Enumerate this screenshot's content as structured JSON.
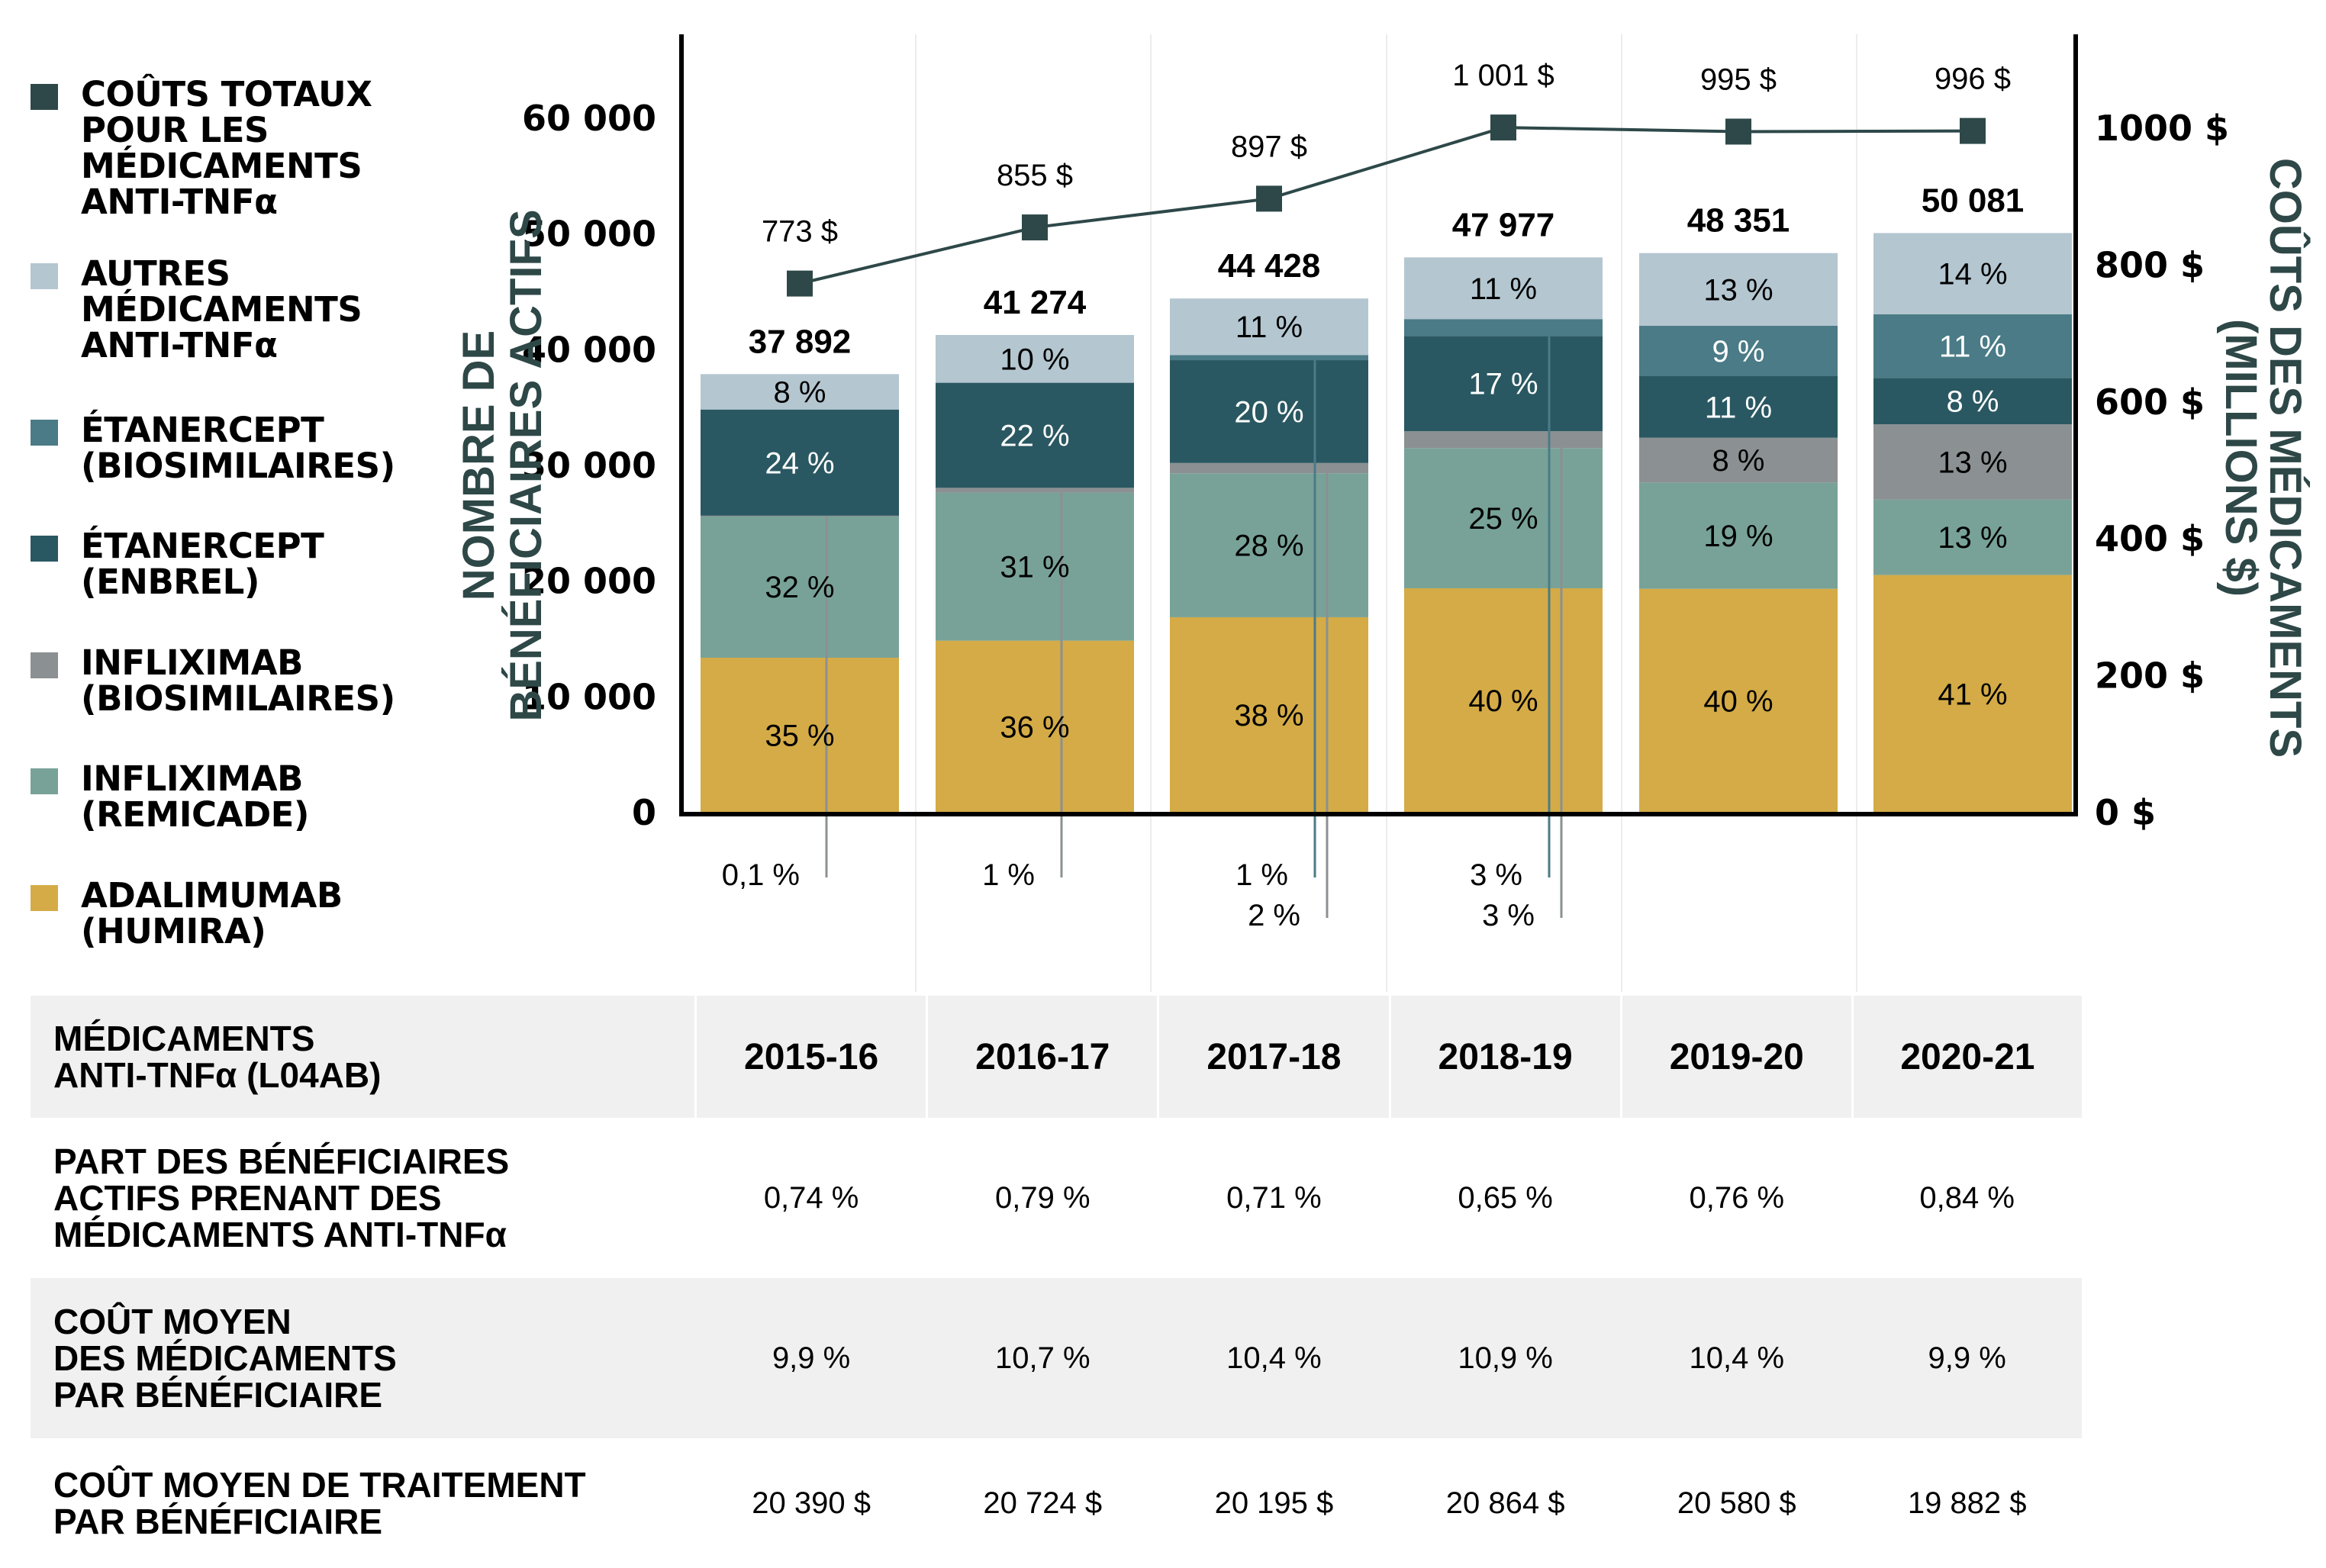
{
  "legend": [
    {
      "label": "COÛTS TOTAUX\nPOUR LES\nMÉDICAMENTS\nANTI-TNFα",
      "color": "#2e4849"
    },
    {
      "label": "AUTRES\nMÉDICAMENTS\nANTI-TNFα",
      "color": "#b4c6d0"
    },
    {
      "label": "ÉTANERCEPT\n(BIOSIMILAIRES)",
      "color": "#4a7b86"
    },
    {
      "label": "ÉTANERCEPT\n(ENBREL)",
      "color": "#2a5862"
    },
    {
      "label": "INFLIXIMAB\n(BIOSIMILAIRES)",
      "color": "#8b9092"
    },
    {
      "label": "INFLIXIMAB\n(REMICADE)",
      "color": "#78a298"
    },
    {
      "label": "ADALIMUMAB\n(HUMIRA)",
      "color": "#d4ab46"
    }
  ],
  "chart_data": {
    "type": "bar",
    "subtype": "stacked-bar-with-line",
    "categories": [
      "2015-16",
      "2016-17",
      "2017-18",
      "2018-19",
      "2019-20",
      "2020-21"
    ],
    "left_axis": {
      "label": "NOMBRE DE BÉNÉFICIAIRES ACTIFS",
      "ylim": [
        0,
        60000
      ],
      "ticks": [
        0,
        10000,
        20000,
        30000,
        40000,
        50000,
        60000
      ],
      "tick_labels": [
        "0",
        "10 000",
        "20 000",
        "30 000",
        "40 000",
        "50 000",
        "60 000"
      ]
    },
    "right_axis": {
      "label": "COÛTS DES MÉDICAMENTS (MILLIONS $)",
      "ylim": [
        0,
        1000
      ],
      "ticks": [
        0,
        200,
        400,
        600,
        800,
        1000
      ],
      "tick_labels": [
        "0 $",
        "200 $",
        "400 $",
        "600 $",
        "800 $",
        "1000 $"
      ]
    },
    "totals": [
      37892,
      41274,
      44428,
      47977,
      48351,
      50081
    ],
    "total_labels": [
      "37 892",
      "41 274",
      "44 428",
      "47 977",
      "48 351",
      "50 081"
    ],
    "series": [
      {
        "name": "ADALIMUMAB (HUMIRA)",
        "color": "#d4ab46",
        "values": [
          35,
          36,
          38,
          40,
          40,
          41
        ],
        "labels": [
          "35 %",
          "36 %",
          "38 %",
          "40 %",
          "40 %",
          "41 %"
        ],
        "label_color": "#000000"
      },
      {
        "name": "INFLIXIMAB (REMICADE)",
        "color": "#78a298",
        "values": [
          32,
          31,
          28,
          25,
          19,
          13
        ],
        "labels": [
          "32 %",
          "31 %",
          "28 %",
          "25 %",
          "19 %",
          "13 %"
        ],
        "label_color": "#000000"
      },
      {
        "name": "INFLIXIMAB (BIOSIMILAIRES)",
        "color": "#8b9092",
        "values": [
          0.1,
          1,
          2,
          3,
          8,
          13
        ],
        "labels": [
          "0,1 %",
          "1 %",
          "2 %",
          "3 %",
          "8 %",
          "13 %"
        ],
        "label_color": "#000000"
      },
      {
        "name": "ÉTANERCEPT (ENBREL)",
        "color": "#2a5862",
        "values": [
          24,
          22,
          20,
          17,
          11,
          8
        ],
        "labels": [
          "24 %",
          "22 %",
          "20 %",
          "17 %",
          "11 %",
          "8 %"
        ],
        "label_color": "#ffffff"
      },
      {
        "name": "ÉTANERCEPT (BIOSIMILAIRES)",
        "color": "#4a7b86",
        "values": [
          0,
          0,
          1,
          3,
          9,
          11
        ],
        "labels": [
          "",
          "",
          "1 %",
          "3 %",
          "9 %",
          "11 %"
        ],
        "label_color": "#ffffff"
      },
      {
        "name": "AUTRES MÉDICAMENTS ANTI-TNFα",
        "color": "#b4c6d0",
        "values": [
          8,
          10,
          11,
          11,
          13,
          14
        ],
        "labels": [
          "8 %",
          "10 %",
          "11 %",
          "11 %",
          "13 %",
          "14 %"
        ],
        "label_color": "#000000"
      }
    ],
    "line": {
      "name": "COÛTS TOTAUX POUR LES MÉDICAMENTS ANTI-TNFα",
      "color": "#2e4849",
      "values": [
        773,
        855,
        897,
        1001,
        995,
        996
      ],
      "labels": [
        "773 $",
        "855 $",
        "897 $",
        "1 001 $",
        "995 $",
        "996 $"
      ]
    },
    "callouts": [
      {
        "category": "2015-16",
        "series": "INFLIXIMAB (BIOSIMILAIRES)",
        "label": "0,1 %",
        "row": 0
      },
      {
        "category": "2016-17",
        "series": "INFLIXIMAB (BIOSIMILAIRES)",
        "label": "1 %",
        "row": 0
      },
      {
        "category": "2017-18",
        "series": "ÉTANERCEPT (BIOSIMILAIRES)",
        "label": "1 %",
        "row": 0
      },
      {
        "category": "2017-18",
        "series": "INFLIXIMAB (BIOSIMILAIRES)",
        "label": "2 %",
        "row": 1
      },
      {
        "category": "2018-19",
        "series": "ÉTANERCEPT (BIOSIMILAIRES)",
        "label": "3 %",
        "row": 0
      },
      {
        "category": "2018-19",
        "series": "INFLIXIMAB (BIOSIMILAIRES)",
        "label": "3 %",
        "row": 1
      }
    ],
    "grid": false,
    "legend_position": "left"
  },
  "table": {
    "header_label": "MÉDICAMENTS\nANTI-TNFα (L04AB)",
    "years": [
      "2015-16",
      "2016-17",
      "2017-18",
      "2018-19",
      "2019-20",
      "2020-21"
    ],
    "rows": [
      {
        "label": "PART DES BÉNÉFICIAIRES\nACTIFS PRENANT DES\nMÉDICAMENTS ANTI-TNFα",
        "values": [
          "0,74 %",
          "0,79 %",
          "0,71 %",
          "0,65 %",
          "0,76 %",
          "0,84 %"
        ]
      },
      {
        "label": "COÛT MOYEN\nDES MÉDICAMENTS\nPAR BÉNÉFICIAIRE",
        "values": [
          "9,9 %",
          "10,7 %",
          "10,4 %",
          "10,9 %",
          "10,4 %",
          "9,9 %"
        ]
      },
      {
        "label": "COÛT MOYEN DE TRAITEMENT\nPAR BÉNÉFICIAIRE",
        "values": [
          "20 390 $",
          "20 724 $",
          "20 195 $",
          "20 864 $",
          "20 580 $",
          "19 882 $"
        ]
      }
    ]
  }
}
